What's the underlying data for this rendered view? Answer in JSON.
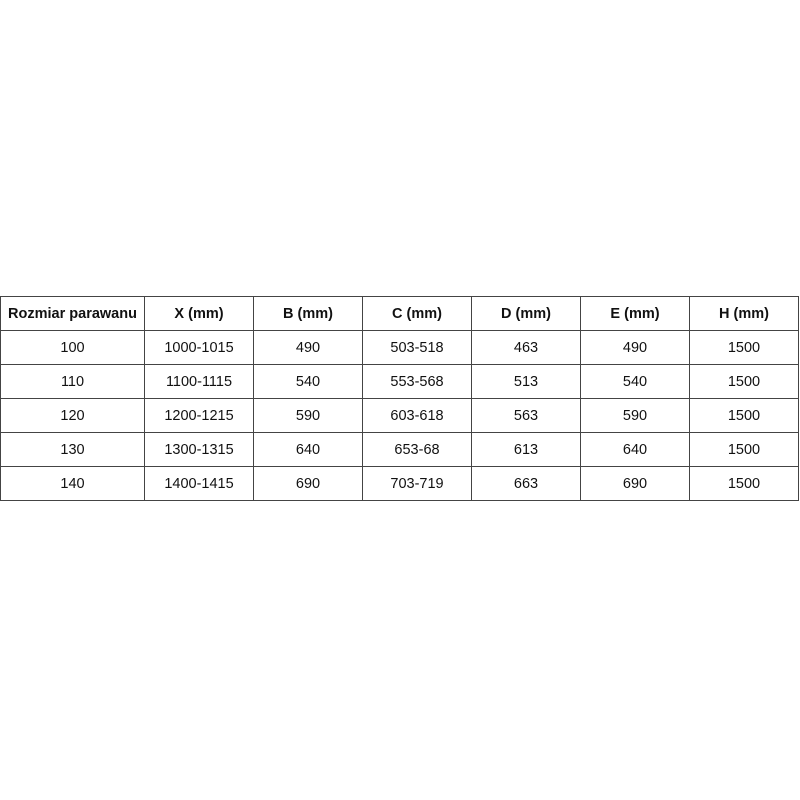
{
  "table": {
    "headers": [
      "Rozmiar parawanu",
      "X (mm)",
      "B (mm)",
      "C (mm)",
      "D (mm)",
      "E (mm)",
      "H (mm)"
    ],
    "rows": [
      [
        "100",
        "1000-1015",
        "490",
        "503-518",
        "463",
        "490",
        "1500"
      ],
      [
        "110",
        "1100-1115",
        "540",
        "553-568",
        "513",
        "540",
        "1500"
      ],
      [
        "120",
        "1200-1215",
        "590",
        "603-618",
        "563",
        "590",
        "1500"
      ],
      [
        "130",
        "1300-1315",
        "640",
        "653-68",
        "613",
        "640",
        "1500"
      ],
      [
        "140",
        "1400-1415",
        "690",
        "703-719",
        "663",
        "690",
        "1500"
      ]
    ]
  }
}
